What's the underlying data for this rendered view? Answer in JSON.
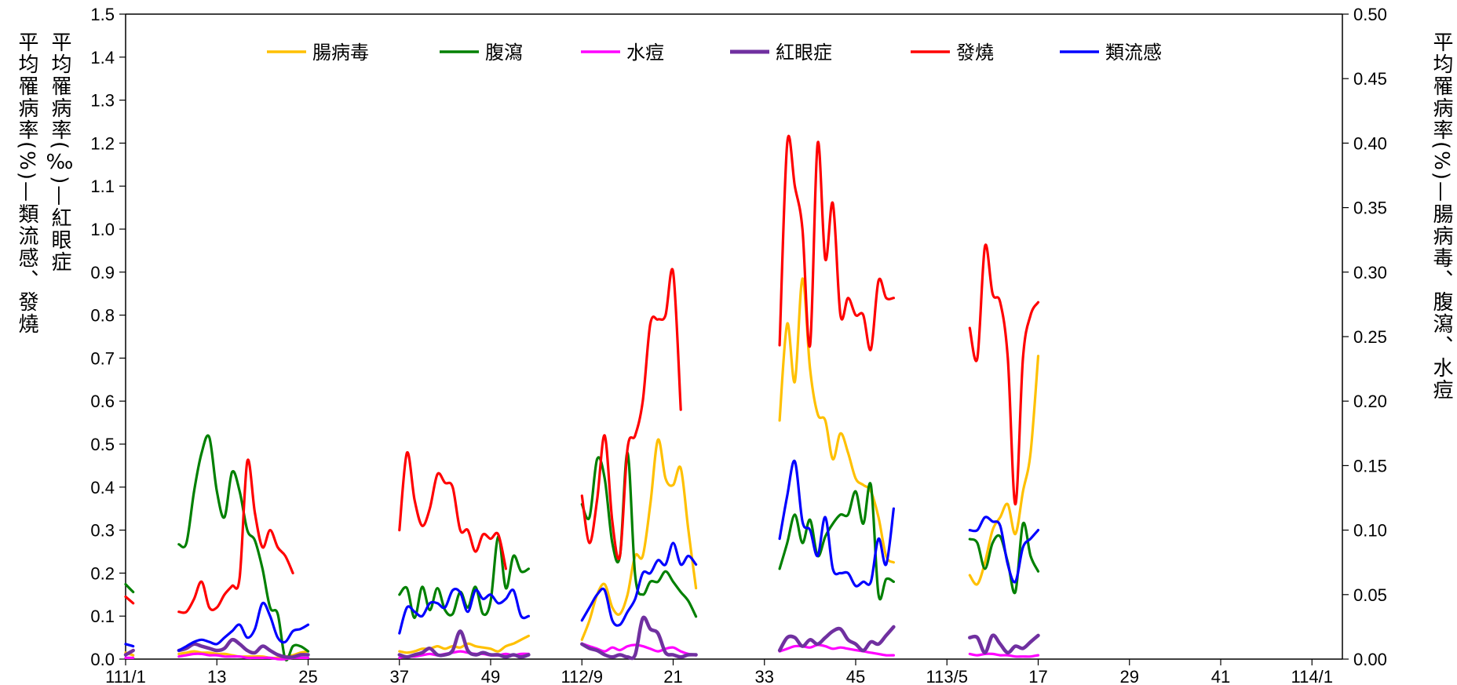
{
  "chart_data": {
    "type": "line",
    "left_label_1": "平均罹病率(%)—類流感、發燒",
    "left_label_2": "平均罹病率(‰)—紅眼症",
    "right_label": "平均罹病率(%)—腸病毒、腹瀉、水痘",
    "ylim_left": [
      0,
      1.5
    ],
    "ylim_right": [
      0,
      0.5
    ],
    "y_ticks_left": [
      "0.0",
      "0.1",
      "0.2",
      "0.3",
      "0.4",
      "0.5",
      "0.6",
      "0.7",
      "0.8",
      "0.9",
      "1.0",
      "1.1",
      "1.2",
      "1.3",
      "1.4",
      "1.5"
    ],
    "y_ticks_right": [
      "0.00",
      "0.05",
      "0.10",
      "0.15",
      "0.20",
      "0.25",
      "0.30",
      "0.35",
      "0.40",
      "0.45",
      "0.50"
    ],
    "x_ticks": [
      {
        "i": 0,
        "label": "111/1"
      },
      {
        "i": 12,
        "label": "13"
      },
      {
        "i": 24,
        "label": "25"
      },
      {
        "i": 36,
        "label": "37"
      },
      {
        "i": 48,
        "label": "49"
      },
      {
        "i": 60,
        "label": "112/9"
      },
      {
        "i": 72,
        "label": "21"
      },
      {
        "i": 84,
        "label": "33"
      },
      {
        "i": 96,
        "label": "45"
      },
      {
        "i": 108,
        "label": "113/5"
      },
      {
        "i": 120,
        "label": "17"
      },
      {
        "i": 132,
        "label": "29"
      },
      {
        "i": 144,
        "label": "41"
      },
      {
        "i": 156,
        "label": "114/1"
      }
    ],
    "x_max_index": 160,
    "legend_placement": "top",
    "series": [
      {
        "name": "腸病毒",
        "axis": "right",
        "color": "#FFC000",
        "segments": [
          {
            "start": 0,
            "values": [
              0.005,
              0.003
            ]
          },
          {
            "start": 7,
            "values": [
              0.004,
              0.005,
              0.006,
              0.005,
              0.005,
              0.004,
              0.004,
              0.003,
              0.002,
              0.002,
              0.002,
              0.002,
              0.001,
              0.001,
              0.002,
              0.003,
              0.005,
              0.006
            ]
          },
          {
            "start": 36,
            "values": [
              0.006,
              0.005,
              0.006,
              0.008,
              0.008,
              0.01,
              0.008,
              0.01,
              0.009,
              0.012,
              0.01,
              0.009,
              0.008,
              0.006,
              0.01,
              0.012,
              0.015,
              0.018
            ]
          },
          {
            "start": 60,
            "values": [
              0.015,
              0.03,
              0.05,
              0.058,
              0.04,
              0.035,
              0.05,
              0.08,
              0.08,
              0.12,
              0.17,
              0.14,
              0.135,
              0.148,
              0.1,
              0.055
            ]
          },
          {
            "start": 86,
            "values": [
              0.185,
              0.26,
              0.215,
              0.295,
              0.225,
              0.19,
              0.185,
              0.155,
              0.175,
              0.16,
              0.14,
              0.135,
              0.13,
              0.11,
              0.08,
              0.075
            ]
          },
          {
            "start": 111,
            "values": [
              0.065,
              0.058,
              0.075,
              0.1,
              0.11,
              0.12,
              0.097,
              0.13,
              0.16,
              0.235
            ]
          }
        ]
      },
      {
        "name": "腹瀉",
        "axis": "right",
        "color": "#008000",
        "segments": [
          {
            "start": 0,
            "values": [
              0.058,
              0.052
            ]
          },
          {
            "start": 7,
            "values": [
              0.089,
              0.09,
              0.13,
              0.16,
              0.172,
              0.13,
              0.11,
              0.145,
              0.13,
              0.1,
              0.092,
              0.07,
              0.04,
              0.035,
              0.0,
              0.01,
              0.01,
              0.006
            ]
          },
          {
            "start": 36,
            "values": [
              0.05,
              0.055,
              0.032,
              0.056,
              0.038,
              0.055,
              0.038,
              0.035,
              0.052,
              0.04,
              0.056,
              0.035,
              0.045,
              0.095,
              0.055,
              0.08,
              0.068,
              0.07
            ]
          },
          {
            "start": 60,
            "values": [
              0.12,
              0.11,
              0.155,
              0.14,
              0.09,
              0.08,
              0.16,
              0.065,
              0.05,
              0.06,
              0.06,
              0.068,
              0.06,
              0.052,
              0.045,
              0.033
            ]
          },
          {
            "start": 86,
            "values": [
              0.07,
              0.09,
              0.112,
              0.09,
              0.108,
              0.08,
              0.095,
              0.105,
              0.112,
              0.112,
              0.13,
              0.105,
              0.135,
              0.05,
              0.062,
              0.06
            ]
          },
          {
            "start": 111,
            "values": [
              0.093,
              0.09,
              0.07,
              0.09,
              0.095,
              0.075,
              0.052,
              0.105,
              0.08,
              0.068
            ]
          }
        ]
      },
      {
        "name": "水痘",
        "axis": "right",
        "color": "#FF00FF",
        "segments": [
          {
            "start": 0,
            "values": [
              0.001,
              0.001
            ]
          },
          {
            "start": 7,
            "values": [
              0.002,
              0.003,
              0.004,
              0.004,
              0.003,
              0.003,
              0.002,
              0.002,
              0.002,
              0.001,
              0.001,
              0.001,
              0.001,
              0.0,
              0.0,
              0.001,
              0.001,
              0.001
            ]
          },
          {
            "start": 36,
            "values": [
              0.001,
              0.002,
              0.002,
              0.003,
              0.004,
              0.003,
              0.004,
              0.005,
              0.006,
              0.005,
              0.004,
              0.004,
              0.003,
              0.003,
              0.004,
              0.003,
              0.004,
              0.004
            ]
          },
          {
            "start": 60,
            "values": [
              0.012,
              0.01,
              0.008,
              0.006,
              0.009,
              0.007,
              0.01,
              0.011,
              0.01,
              0.008,
              0.006,
              0.008,
              0.009,
              0.006,
              0.004,
              0.003
            ]
          },
          {
            "start": 86,
            "values": [
              0.006,
              0.008,
              0.01,
              0.01,
              0.009,
              0.011,
              0.01,
              0.008,
              0.009,
              0.008,
              0.007,
              0.006,
              0.005,
              0.004,
              0.003,
              0.003
            ]
          },
          {
            "start": 111,
            "values": [
              0.004,
              0.003,
              0.004,
              0.004,
              0.003,
              0.003,
              0.002,
              0.002,
              0.002,
              0.003
            ]
          }
        ]
      },
      {
        "name": "紅眼症",
        "axis": "left",
        "color": "#7030A0",
        "segments": [
          {
            "start": 0,
            "values": [
              0.01,
              0.02
            ]
          },
          {
            "start": 7,
            "values": [
              0.02,
              0.025,
              0.035,
              0.03,
              0.025,
              0.02,
              0.025,
              0.045,
              0.035,
              0.02,
              0.015,
              0.03,
              0.02,
              0.01,
              0.005,
              0.005,
              0.01,
              0.01
            ]
          },
          {
            "start": 36,
            "values": [
              0.01,
              0.005,
              0.01,
              0.015,
              0.025,
              0.01,
              0.01,
              0.02,
              0.065,
              0.02,
              0.01,
              0.015,
              0.01,
              0.01,
              0.005,
              0.01,
              0.005,
              0.01
            ]
          },
          {
            "start": 60,
            "values": [
              0.035,
              0.025,
              0.02,
              0.01,
              0.005,
              0.01,
              0.005,
              0.01,
              0.095,
              0.07,
              0.06,
              0.015,
              0.01,
              0.005,
              0.01,
              0.01
            ]
          },
          {
            "start": 86,
            "values": [
              0.02,
              0.05,
              0.05,
              0.03,
              0.045,
              0.035,
              0.05,
              0.065,
              0.07,
              0.045,
              0.035,
              0.02,
              0.04,
              0.035,
              0.055,
              0.075
            ]
          },
          {
            "start": 111,
            "values": [
              0.05,
              0.05,
              0.015,
              0.055,
              0.035,
              0.015,
              0.03,
              0.025,
              0.04,
              0.055
            ]
          }
        ]
      },
      {
        "name": "發燒",
        "axis": "left",
        "color": "#FF0000",
        "segments": [
          {
            "start": 0,
            "values": [
              0.145,
              0.13
            ]
          },
          {
            "start": 7,
            "values": [
              0.11,
              0.11,
              0.14,
              0.18,
              0.12,
              0.12,
              0.15,
              0.17,
              0.19,
              0.46,
              0.34,
              0.26,
              0.3,
              0.26,
              0.24,
              0.2
            ]
          },
          {
            "start": 36,
            "values": [
              0.3,
              0.48,
              0.37,
              0.31,
              0.35,
              0.43,
              0.41,
              0.4,
              0.3,
              0.3,
              0.25,
              0.29,
              0.28,
              0.29,
              0.21
            ]
          },
          {
            "start": 60,
            "values": [
              0.38,
              0.27,
              0.37,
              0.52,
              0.32,
              0.24,
              0.49,
              0.52,
              0.6,
              0.78,
              0.79,
              0.8,
              0.9,
              0.58
            ]
          },
          {
            "start": 86,
            "values": [
              0.73,
              1.2,
              1.1,
              1.0,
              0.73,
              1.2,
              0.93,
              1.06,
              0.8,
              0.84,
              0.8,
              0.8,
              0.72,
              0.88,
              0.84,
              0.84
            ]
          },
          {
            "start": 111,
            "values": [
              0.77,
              0.7,
              0.96,
              0.85,
              0.83,
              0.7,
              0.36,
              0.7,
              0.8,
              0.83
            ]
          }
        ]
      },
      {
        "name": "類流感",
        "axis": "left",
        "color": "#0000FF",
        "segments": [
          {
            "start": 0,
            "values": [
              0.035,
              0.03
            ]
          },
          {
            "start": 7,
            "values": [
              0.02,
              0.03,
              0.04,
              0.045,
              0.04,
              0.035,
              0.05,
              0.065,
              0.08,
              0.05,
              0.07,
              0.13,
              0.1,
              0.05,
              0.04,
              0.065,
              0.07,
              0.08
            ]
          },
          {
            "start": 36,
            "values": [
              0.06,
              0.12,
              0.11,
              0.1,
              0.13,
              0.13,
              0.12,
              0.16,
              0.155,
              0.11,
              0.16,
              0.14,
              0.15,
              0.13,
              0.14,
              0.16,
              0.1,
              0.1
            ]
          },
          {
            "start": 60,
            "values": [
              0.09,
              0.12,
              0.15,
              0.16,
              0.09,
              0.08,
              0.11,
              0.14,
              0.2,
              0.2,
              0.23,
              0.22,
              0.27,
              0.22,
              0.24,
              0.22
            ]
          },
          {
            "start": 86,
            "values": [
              0.28,
              0.38,
              0.46,
              0.32,
              0.3,
              0.24,
              0.33,
              0.21,
              0.2,
              0.2,
              0.17,
              0.18,
              0.18,
              0.28,
              0.22,
              0.35
            ]
          },
          {
            "start": 111,
            "values": [
              0.3,
              0.3,
              0.33,
              0.32,
              0.31,
              0.22,
              0.18,
              0.26,
              0.28,
              0.3
            ]
          }
        ]
      }
    ]
  }
}
